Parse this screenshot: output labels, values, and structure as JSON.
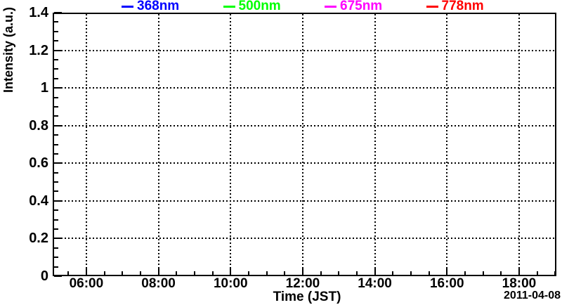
{
  "chart_data": {
    "type": "line",
    "xlabel": "Time (JST)",
    "ylabel": "Intensity (a.u.)",
    "date_label": "2011-04-08",
    "x_axis": {
      "kind": "time-of-day",
      "range_minutes": [
        304,
        1142
      ],
      "major_ticks": [
        {
          "minutes": 360,
          "label": "06:00"
        },
        {
          "minutes": 480,
          "label": "08:00"
        },
        {
          "minutes": 600,
          "label": "10:00"
        },
        {
          "minutes": 720,
          "label": "12:00"
        },
        {
          "minutes": 840,
          "label": "14:00"
        },
        {
          "minutes": 960,
          "label": "16:00"
        },
        {
          "minutes": 1080,
          "label": "18:00"
        }
      ],
      "major_tick_interval_minutes": 120,
      "minor_tick_minutes": 30,
      "grid": "dotted"
    },
    "y_axis": {
      "range": [
        0,
        1.4
      ],
      "major_ticks": [
        {
          "value": 0,
          "label": "0"
        },
        {
          "value": 0.2,
          "label": "0.2"
        },
        {
          "value": 0.4,
          "label": "0.4"
        },
        {
          "value": 0.6,
          "label": "0.6"
        },
        {
          "value": 0.8,
          "label": "0.8"
        },
        {
          "value": 1,
          "label": "1"
        },
        {
          "value": 1.2,
          "label": "1.2"
        },
        {
          "value": 1.4,
          "label": "1.4"
        }
      ],
      "major_tick_interval": 0.2,
      "minor_tick_step": 0.05,
      "grid": "dotted"
    },
    "legend": {
      "position": "top",
      "entries": [
        {
          "label": "368nm",
          "color": "#0000ff"
        },
        {
          "label": "500nm",
          "color": "#00ff00"
        },
        {
          "label": "675nm",
          "color": "#ff00ff"
        },
        {
          "label": "778nm",
          "color": "#ff0000"
        }
      ]
    },
    "series": [
      {
        "name": "368nm",
        "color": "#0000ff",
        "points": []
      },
      {
        "name": "500nm",
        "color": "#00ff00",
        "points": []
      },
      {
        "name": "675nm",
        "color": "#ff00ff",
        "points": []
      },
      {
        "name": "778nm",
        "color": "#ff0000",
        "points": []
      }
    ],
    "frame_color": "#000000",
    "grid_color": "#000000",
    "text_color": "#000000",
    "background_color": "#ffffff"
  }
}
